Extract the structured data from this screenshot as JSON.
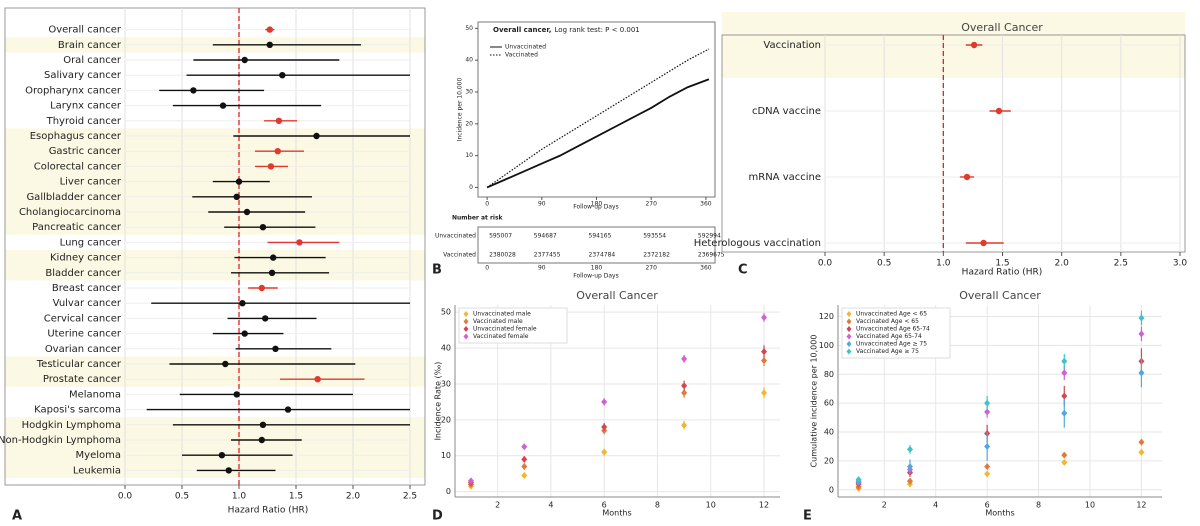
{
  "chart_data": [
    {
      "type": "forest",
      "panel": "A",
      "xlabel": "Hazard Ratio (HR)",
      "xlim": [
        0,
        2.5
      ],
      "xticks": [
        {
          "value": 0,
          "label": "0.0"
        },
        0.5,
        {
          "value": 1,
          "label": "1.0"
        },
        1.5,
        {
          "value": 2,
          "label": "2.0"
        },
        2.5
      ],
      "ref_line": 1,
      "grid": true,
      "categories": [
        "Overall cancer",
        "Brain cancer",
        "Oral cancer",
        "Salivary cancer",
        "Oropharynx cancer",
        "Larynx cancer",
        "Thyroid cancer",
        "Esophagus cancer",
        "Gastric cancer",
        "Colorectal cancer",
        "Liver cancer",
        "Gallbladder cancer",
        "Cholangiocarcinoma",
        "Pancreatic cancer",
        "Lung cancer",
        "Kidney cancer",
        "Bladder cancer",
        "Breast cancer",
        "Vulvar cancer",
        "Cervical cancer",
        "Uterine cancer",
        "Ovarian cancer",
        "Testicular cancer",
        "Prostate cancer",
        "Melanoma",
        "Kaposi's sarcoma",
        "Hodgkin Lymphoma",
        "Non-Hodgkin Lymphoma",
        "Myeloma",
        "Leukemia"
      ],
      "values": [
        1.27,
        1.27,
        1.05,
        1.38,
        0.6,
        0.86,
        1.35,
        1.68,
        1.34,
        1.28,
        1.0,
        0.98,
        1.07,
        1.21,
        1.53,
        1.3,
        1.29,
        1.2,
        1.03,
        1.23,
        1.05,
        1.32,
        0.88,
        1.69,
        0.98,
        1.43,
        1.21,
        1.2,
        0.85,
        0.91
      ],
      "lower": [
        1.23,
        0.77,
        0.6,
        0.54,
        0.3,
        0.42,
        1.22,
        0.95,
        1.14,
        1.14,
        0.77,
        0.59,
        0.73,
        0.87,
        1.25,
        0.96,
        0.93,
        1.08,
        0.23,
        0.9,
        0.77,
        0.97,
        0.39,
        1.36,
        0.48,
        0.19,
        0.42,
        0.93,
        0.5,
        0.63
      ],
      "upper": [
        1.31,
        2.07,
        1.88,
        2.5,
        1.22,
        1.72,
        1.51,
        2.5,
        1.57,
        1.43,
        1.27,
        1.64,
        1.58,
        1.67,
        1.88,
        1.76,
        1.79,
        1.34,
        2.5,
        1.68,
        1.39,
        1.81,
        2.02,
        2.1,
        2.0,
        2.5,
        2.5,
        1.55,
        1.47,
        1.32
      ],
      "colors": [
        "#e03a2f",
        "#111",
        "#111",
        "#111",
        "#111",
        "#111",
        "#e03a2f",
        "#111",
        "#e03a2f",
        "#e03a2f",
        "#111",
        "#111",
        "#111",
        "#111",
        "#e03a2f",
        "#111",
        "#111",
        "#e03a2f",
        "#111",
        "#111",
        "#111",
        "#111",
        "#111",
        "#e03a2f",
        "#111",
        "#111",
        "#111",
        "#111",
        "#111",
        "#111"
      ],
      "highlight": [
        false,
        true,
        false,
        false,
        false,
        false,
        false,
        true,
        true,
        true,
        true,
        true,
        true,
        true,
        false,
        true,
        true,
        false,
        false,
        false,
        false,
        false,
        true,
        true,
        false,
        false,
        true,
        true,
        true,
        true
      ]
    },
    {
      "type": "line",
      "panel": "B",
      "title": "Overall cancer,",
      "subtitle": "Log rank test: P < 0.001",
      "xlabel": "Follow-up Days",
      "ylabel": "Incidence per 10,000",
      "xlim": [
        -15,
        375
      ],
      "xticks": [
        0,
        90,
        180,
        270,
        360
      ],
      "ylim": [
        -3,
        52
      ],
      "yticks": [
        0,
        10,
        20,
        30,
        40,
        50
      ],
      "x": [
        0,
        30,
        60,
        90,
        120,
        150,
        180,
        210,
        240,
        270,
        300,
        330,
        365
      ],
      "series": [
        {
          "name": "Unvaccinated",
          "color": "#111",
          "dash": "solid",
          "values": [
            0,
            2.5,
            5,
            7.5,
            10,
            13,
            16,
            19,
            22,
            25,
            28.5,
            31.5,
            34
          ]
        },
        {
          "name": "Vaccinated",
          "color": "#111",
          "dash": "dotted",
          "values": [
            0,
            4,
            8,
            12,
            15.5,
            19,
            22.5,
            26,
            29.5,
            33,
            36.5,
            40,
            43.5
          ]
        }
      ],
      "risk_table": {
        "title": "Number at risk",
        "times": [
          0,
          90,
          180,
          270,
          360
        ],
        "xlabel": "Follow-up Days",
        "rows": [
          {
            "name": "Unvaccinated",
            "values": [
              595007,
              594687,
              594165,
              593554,
              592994
            ]
          },
          {
            "name": "Vaccinated",
            "values": [
              2380028,
              2377455,
              2374784,
              2372182,
              2369675
            ]
          }
        ]
      }
    },
    {
      "type": "forest",
      "panel": "C",
      "title": "Overall Cancer",
      "xlabel": "Hazard Ratio (HR)",
      "xlim": [
        0,
        3
      ],
      "xticks": [
        {
          "value": 0,
          "label": "0.0"
        },
        0.5,
        {
          "value": 1,
          "label": "1.0"
        },
        1.5,
        {
          "value": 2,
          "label": "2.0"
        },
        2.5,
        {
          "value": 3,
          "label": "3.0"
        }
      ],
      "ref_line": 1,
      "grid": true,
      "categories": [
        "Vaccination",
        "cDNA vaccine",
        "mRNA vaccine",
        "Heterologous vaccination"
      ],
      "values": [
        1.26,
        1.47,
        1.2,
        1.34
      ],
      "lower": [
        1.19,
        1.39,
        1.14,
        1.19
      ],
      "upper": [
        1.33,
        1.57,
        1.26,
        1.51
      ],
      "colors": [
        "#e03a2f",
        "#e03a2f",
        "#e03a2f",
        "#e03a2f"
      ],
      "highlight": [
        true,
        false,
        false,
        false
      ]
    },
    {
      "type": "errorscatter",
      "panel": "D",
      "title": "Overall Cancer",
      "xlabel": "Months",
      "ylabel": "Incidence Rate (‰)",
      "xlim": [
        0.4,
        12.6
      ],
      "xticks": [
        2,
        4,
        6,
        8,
        10,
        12
      ],
      "ylim": [
        -1.5,
        52
      ],
      "yticks": [
        0,
        10,
        20,
        30,
        40,
        50
      ],
      "grid": true,
      "x": [
        1,
        3,
        6,
        9,
        12
      ],
      "series": [
        {
          "name": "Unvaccinated male",
          "color": "#f2b630",
          "values": [
            1.5,
            4.5,
            11,
            18.5,
            27.5
          ],
          "errors": [
            0.6,
            0.8,
            1,
            1.2,
            1.5
          ]
        },
        {
          "name": "Vaccinated male",
          "color": "#e07b39",
          "values": [
            2,
            7,
            17,
            27.5,
            36.5
          ],
          "errors": [
            0.6,
            0.9,
            1,
            1.3,
            1.5
          ]
        },
        {
          "name": "Unvaccinated female",
          "color": "#d6454f",
          "values": [
            2.5,
            9,
            18,
            29.5,
            39
          ],
          "errors": [
            0.6,
            0.9,
            1.1,
            1.4,
            1.8
          ]
        },
        {
          "name": "Vaccinated female",
          "color": "#d35fd6",
          "values": [
            3,
            12.5,
            25,
            37,
            48.5
          ],
          "errors": [
            0.6,
            0.8,
            1,
            1.1,
            1.2
          ]
        }
      ]
    },
    {
      "type": "errorscatter",
      "panel": "E",
      "title": "Overall Cancer",
      "xlabel": "Months",
      "ylabel": "Cumulative incidence per 10,000",
      "xlim": [
        0.2,
        12.8
      ],
      "xticks": [
        2,
        4,
        6,
        8,
        10,
        12
      ],
      "ylim": [
        -5,
        128
      ],
      "yticks": [
        0,
        20,
        40,
        60,
        80,
        100,
        120
      ],
      "grid": true,
      "x": [
        1,
        3,
        6,
        9,
        12
      ],
      "series": [
        {
          "name": "Unvaccinated Age < 65",
          "color": "#f2b630",
          "values": [
            1,
            4,
            11,
            19,
            26
          ],
          "errors": [
            0.5,
            0.8,
            1,
            1,
            1.2
          ]
        },
        {
          "name": "Vaccinated Age < 65",
          "color": "#e07b39",
          "values": [
            2,
            6,
            16,
            24,
            33
          ],
          "errors": [
            0.5,
            0.8,
            1,
            1,
            1.2
          ]
        },
        {
          "name": "Unvaccinated Age 65-74",
          "color": "#d6454f",
          "values": [
            4,
            12,
            39,
            65,
            89
          ],
          "errors": [
            1.5,
            3,
            6,
            7,
            9
          ]
        },
        {
          "name": "Vaccinated Age 65-74",
          "color": "#d35fd6",
          "values": [
            5,
            14,
            54,
            81,
            108
          ],
          "errors": [
            1,
            2,
            4,
            5,
            5
          ]
        },
        {
          "name": "Unvaccinated Age ≥ 75",
          "color": "#4fa9e0",
          "values": [
            6,
            16,
            30,
            53,
            81
          ],
          "errors": [
            3,
            5,
            10,
            10,
            10
          ]
        },
        {
          "name": "Vaccinated Age ≥ 75",
          "color": "#3fc3c7",
          "values": [
            7,
            28,
            60,
            89,
            119
          ],
          "errors": [
            2,
            3,
            5,
            5,
            5
          ]
        }
      ]
    }
  ]
}
